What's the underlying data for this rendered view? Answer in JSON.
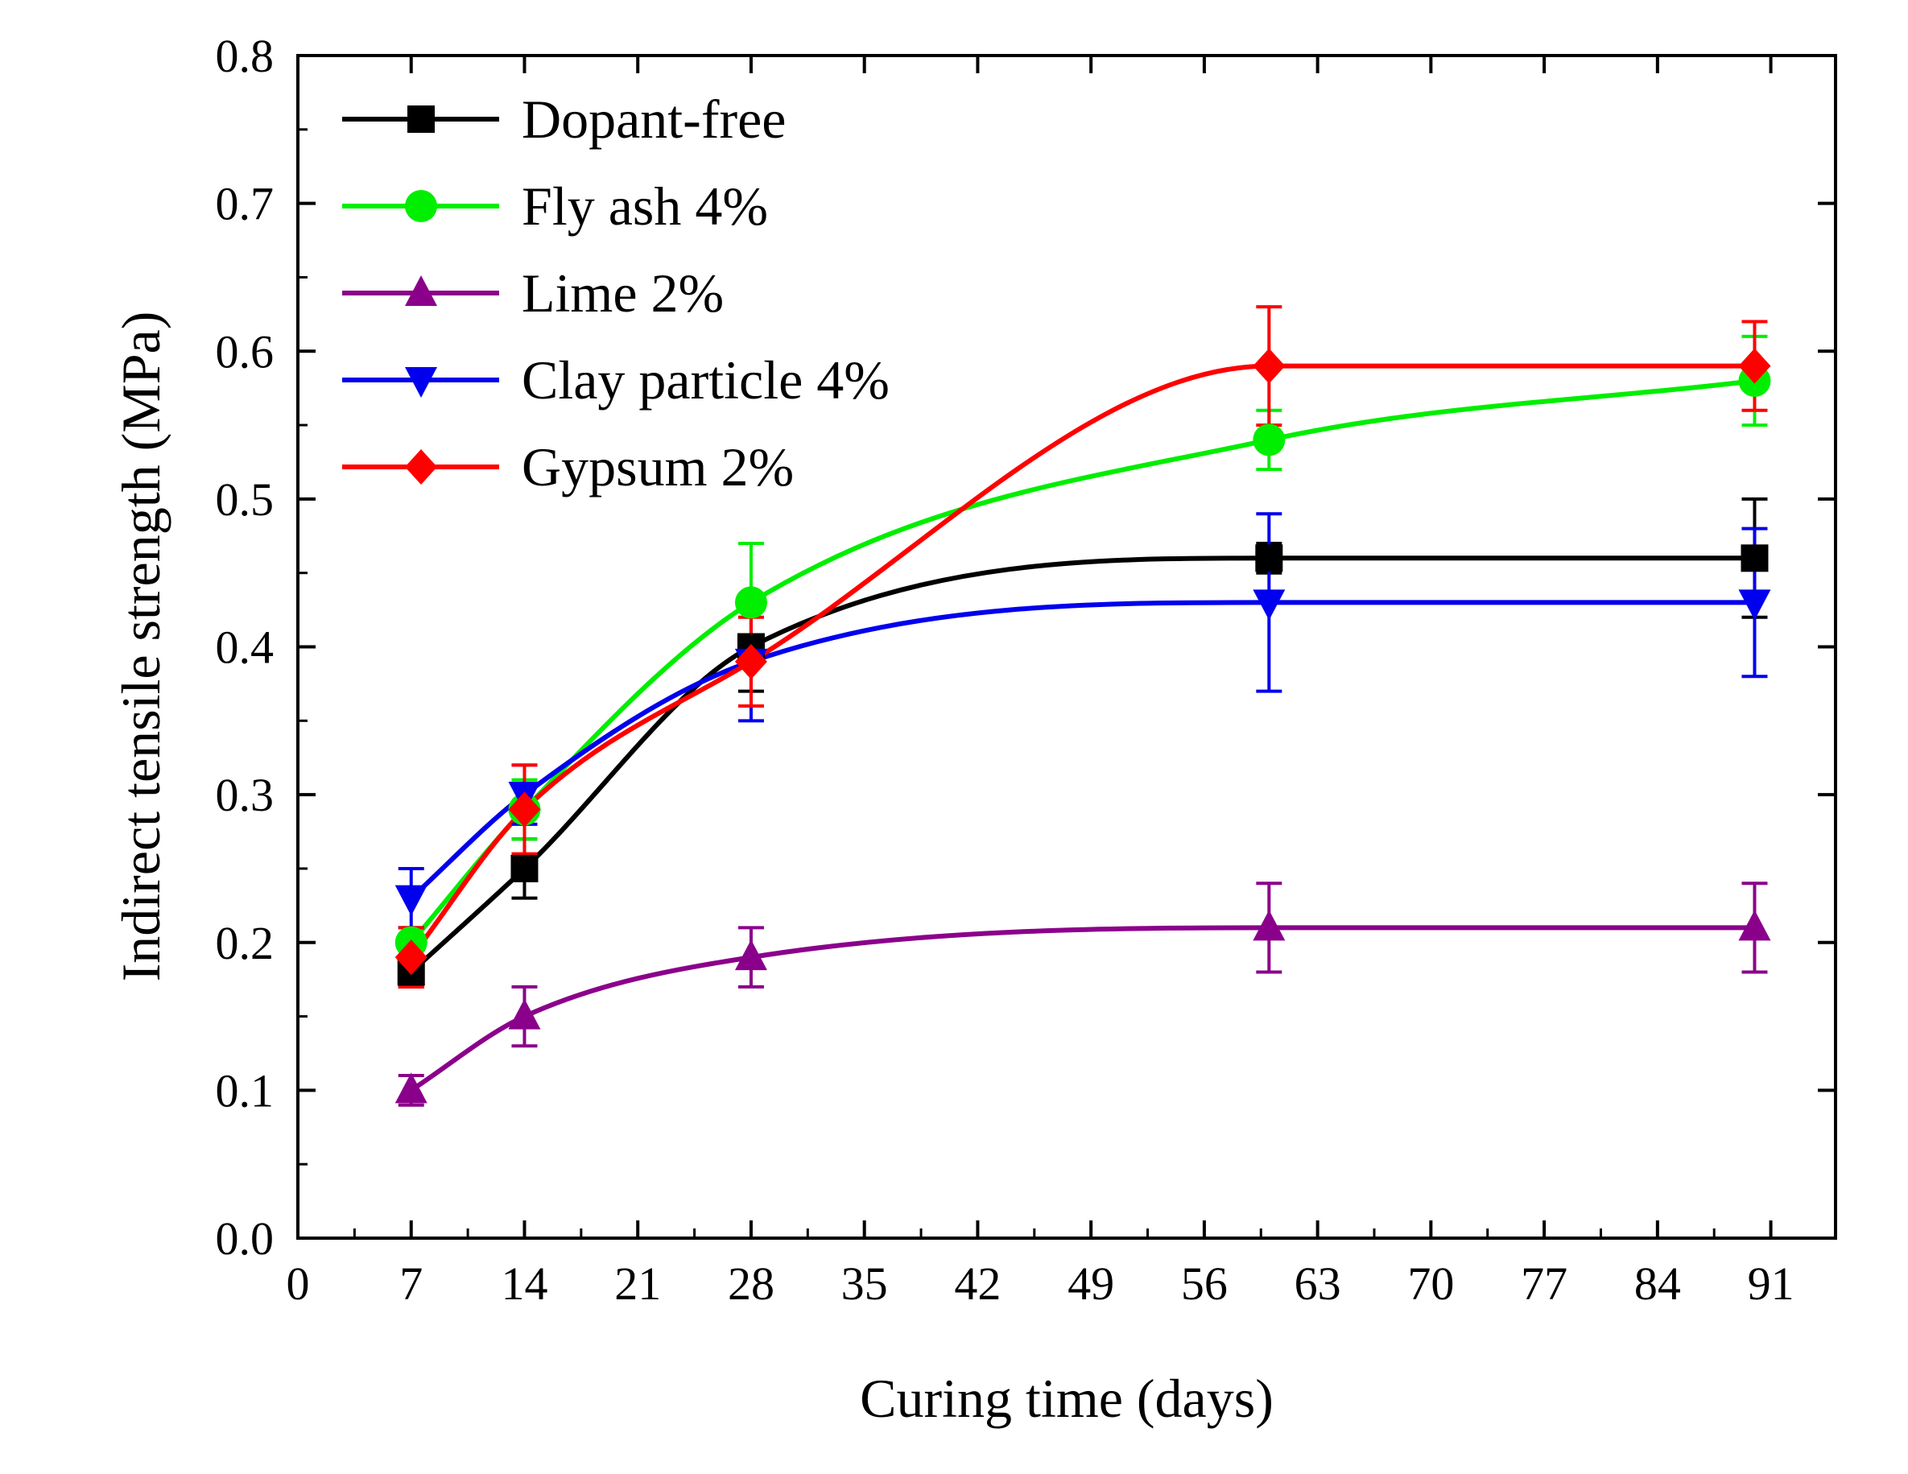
{
  "chart_data": {
    "type": "line",
    "title": "",
    "xlabel": "Curing time (days)",
    "ylabel": "Indirect tensile strength (MPa)",
    "xlim": [
      0,
      95
    ],
    "ylim": [
      0.0,
      0.8
    ],
    "xticks": [
      0,
      7,
      14,
      21,
      28,
      35,
      42,
      49,
      56,
      63,
      70,
      77,
      84,
      91
    ],
    "yticks": [
      0.0,
      0.1,
      0.2,
      0.3,
      0.4,
      0.5,
      0.6,
      0.7,
      0.8
    ],
    "xtick_labels": [
      "0",
      "7",
      "14",
      "21",
      "28",
      "35",
      "42",
      "49",
      "56",
      "63",
      "70",
      "77",
      "84",
      "91"
    ],
    "ytick_labels": [
      "0.0",
      "0.1",
      "0.2",
      "0.3",
      "0.4",
      "0.5",
      "0.6",
      "0.7",
      "0.8"
    ],
    "grid": false,
    "legend_position": "top-left",
    "x": [
      7,
      14,
      28,
      60,
      90
    ],
    "series": [
      {
        "name": "Dopant-free",
        "color": "#000000",
        "marker": "square",
        "values": [
          0.18,
          0.25,
          0.4,
          0.46,
          0.46
        ],
        "errors": [
          0.01,
          0.02,
          0.03,
          0.01,
          0.04
        ]
      },
      {
        "name": "Fly ash 4%",
        "color": "#00ee00",
        "marker": "circle",
        "values": [
          0.2,
          0.29,
          0.43,
          0.54,
          0.58
        ],
        "errors": [
          0.01,
          0.02,
          0.04,
          0.02,
          0.03
        ]
      },
      {
        "name": "Lime 2%",
        "color": "#8b008b",
        "marker": "triangle-up",
        "values": [
          0.1,
          0.15,
          0.19,
          0.21,
          0.21
        ],
        "errors": [
          0.01,
          0.02,
          0.02,
          0.03,
          0.03
        ]
      },
      {
        "name": "Clay particle 4%",
        "color": "#0000ee",
        "marker": "triangle-down",
        "values": [
          0.23,
          0.3,
          0.39,
          0.43,
          0.43
        ],
        "errors": [
          0.02,
          0.02,
          0.04,
          0.06,
          0.05
        ]
      },
      {
        "name": "Gypsum 2%",
        "color": "#ff0000",
        "marker": "diamond",
        "values": [
          0.19,
          0.29,
          0.39,
          0.59,
          0.59
        ],
        "errors": [
          0.02,
          0.03,
          0.03,
          0.04,
          0.03
        ]
      }
    ]
  }
}
